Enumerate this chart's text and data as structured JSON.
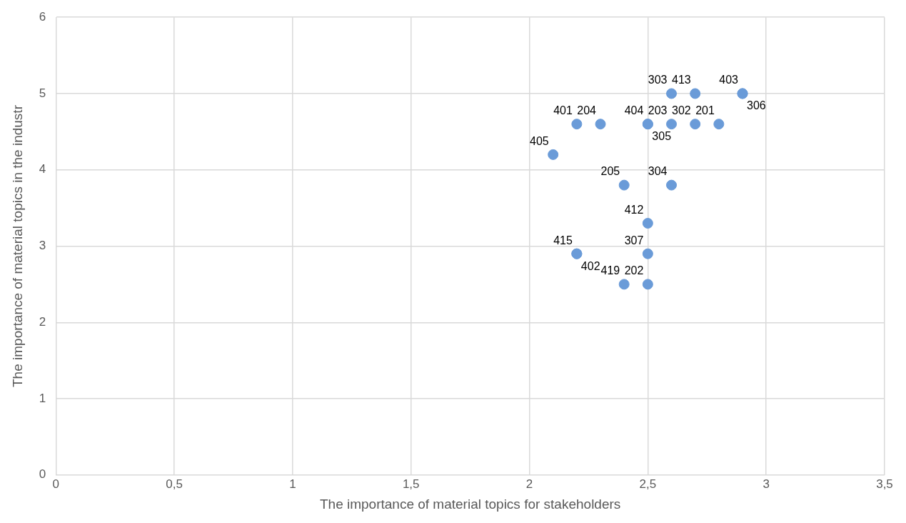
{
  "chart_data": {
    "type": "scatter",
    "xlabel": "The importance of material topics for stakeholders",
    "ylabel": "The importance of material topics in the industr",
    "xlim": [
      0,
      3.5
    ],
    "xticks": [
      0,
      {
        "value": 0.5,
        "label": "0,5"
      },
      1,
      {
        "value": 1.5,
        "label": "1,5"
      },
      2,
      {
        "value": 2.5,
        "label": "2,5"
      },
      3,
      {
        "value": 3.5,
        "label": "3,5"
      }
    ],
    "ylim": [
      0,
      6
    ],
    "yticks": [
      0,
      1,
      2,
      3,
      4,
      5,
      6
    ],
    "grid": true,
    "legend": false,
    "marker": "circle",
    "series": [
      {
        "color": "#6a9bd8",
        "x": [
          2.6,
          2.7,
          2.9,
          2.9,
          2.2,
          2.3,
          2.5,
          2.5,
          2.6,
          2.7,
          2.8,
          2.1,
          2.4,
          2.6,
          2.5,
          2.2,
          2.2,
          2.5,
          2.4,
          2.5
        ],
        "values": [
          5,
          5,
          5,
          5,
          4.6,
          4.6,
          4.6,
          4.6,
          4.6,
          4.6,
          4.6,
          4.2,
          3.8,
          3.8,
          3.3,
          2.9,
          2.9,
          2.9,
          2.5,
          2.5
        ]
      }
    ],
    "annotations": [
      {
        "text": "303",
        "x": 2.6,
        "y": 5
      },
      {
        "text": "413",
        "x": 2.7,
        "y": 5
      },
      {
        "text": "403",
        "x": 2.9,
        "y": 5
      },
      {
        "text": "306",
        "x": 2.9,
        "y": 5
      },
      {
        "text": "401",
        "x": 2.2,
        "y": 4.6
      },
      {
        "text": "204",
        "x": 2.3,
        "y": 4.6
      },
      {
        "text": "404",
        "x": 2.5,
        "y": 4.6
      },
      {
        "text": "305",
        "x": 2.5,
        "y": 4.6
      },
      {
        "text": "203",
        "x": 2.6,
        "y": 4.6
      },
      {
        "text": "302",
        "x": 2.7,
        "y": 4.6
      },
      {
        "text": "201",
        "x": 2.8,
        "y": 4.6
      },
      {
        "text": "405",
        "x": 2.1,
        "y": 4.2
      },
      {
        "text": "205",
        "x": 2.4,
        "y": 3.8
      },
      {
        "text": "304",
        "x": 2.6,
        "y": 3.8
      },
      {
        "text": "412",
        "x": 2.5,
        "y": 3.3
      },
      {
        "text": "415",
        "x": 2.2,
        "y": 2.9
      },
      {
        "text": "402",
        "x": 2.2,
        "y": 2.9
      },
      {
        "text": "307",
        "x": 2.5,
        "y": 2.9
      },
      {
        "text": "419",
        "x": 2.4,
        "y": 2.5
      },
      {
        "text": "202",
        "x": 2.5,
        "y": 2.5
      }
    ]
  }
}
